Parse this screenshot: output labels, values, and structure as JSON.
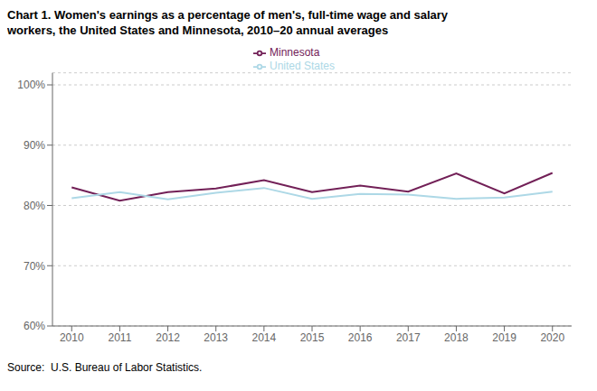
{
  "chart_data": {
    "type": "line",
    "title": "Chart 1. Women's earnings as a percentage of men's, full-time wage and salary\nworkers, the United States and Minnesota, 2010–20 annual averages",
    "source": "Source:  U.S. Bureau of Labor Statistics.",
    "x": [
      2010,
      2011,
      2012,
      2013,
      2014,
      2015,
      2016,
      2017,
      2018,
      2019,
      2020
    ],
    "xlim": [
      2009.6,
      2020.4
    ],
    "xticks": [
      2010,
      2011,
      2012,
      2013,
      2014,
      2015,
      2016,
      2017,
      2018,
      2019,
      2020
    ],
    "ylim": [
      60,
      102
    ],
    "yticks": [
      {
        "value": 60,
        "label": "60%"
      },
      {
        "value": 70,
        "label": "70%"
      },
      {
        "value": 80,
        "label": "80%"
      },
      {
        "value": 90,
        "label": "90%"
      },
      {
        "value": 100,
        "label": "100%"
      }
    ],
    "grid": true,
    "legend": "top",
    "series": [
      {
        "name": "Minnesota",
        "color": "#722057",
        "values": [
          83.0,
          80.8,
          82.2,
          82.8,
          84.2,
          82.2,
          83.3,
          82.3,
          85.3,
          82.0,
          85.4
        ]
      },
      {
        "name": "United States",
        "color": "#ADD8E6",
        "values": [
          81.2,
          82.2,
          81.0,
          82.1,
          82.9,
          81.1,
          81.9,
          81.8,
          81.1,
          81.3,
          82.3
        ]
      }
    ]
  }
}
